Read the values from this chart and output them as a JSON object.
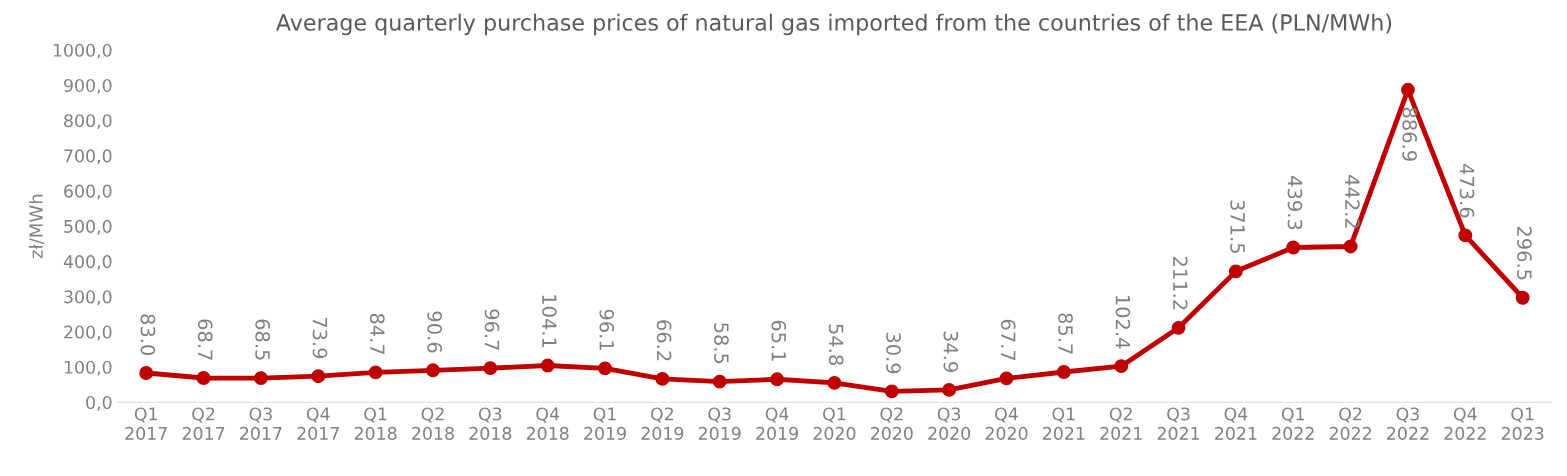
{
  "chart_data": {
    "type": "line",
    "title": "Average quarterly purchase prices of natural gas imported from the countries of the EEA (PLN/MWh)",
    "ylabel": "zł/MWh",
    "categories": [
      "Q1\n2017",
      "Q2\n2017",
      "Q3\n2017",
      "Q4\n2017",
      "Q1\n2018",
      "Q2\n2018",
      "Q3\n2018",
      "Q4\n2018",
      "Q1\n2019",
      "Q2\n2019",
      "Q3\n2019",
      "Q4\n2019",
      "Q1\n2020",
      "Q2\n2020",
      "Q3\n2020",
      "Q4\n2020",
      "Q1\n2021",
      "Q2\n2021",
      "Q3\n2021",
      "Q4\n2021",
      "Q1\n2022",
      "Q2\n2022",
      "Q3\n2022",
      "Q4\n2022",
      "Q1\n2023"
    ],
    "series": [
      {
        "color": "#c00000",
        "values": [
          83.0,
          68.7,
          68.5,
          73.9,
          84.7,
          90.6,
          96.7,
          104.1,
          96.1,
          66.2,
          58.5,
          65.1,
          54.8,
          30.9,
          34.9,
          67.7,
          85.7,
          102.4,
          211.2,
          371.5,
          439.3,
          442.2,
          886.9,
          473.6,
          296.5
        ],
        "value_labels": [
          "83.0",
          "68.7",
          "68.5",
          "73.9",
          "84.7",
          "90.6",
          "96.7",
          "104.1",
          "96.1",
          "66.2",
          "58.5",
          "65.1",
          "54.8",
          "30.9",
          "34.9",
          "67.7",
          "85.7",
          "102.4",
          "211.2",
          "371.5",
          "439.3",
          "442.2",
          "886.9",
          "473.6",
          "296.5"
        ]
      }
    ],
    "ylim": [
      0,
      1000
    ],
    "yticks": [
      {
        "value": 0,
        "label": "0,0"
      },
      {
        "value": 100,
        "label": "100,0"
      },
      {
        "value": 200,
        "label": "200,0"
      },
      {
        "value": 300,
        "label": "300,0"
      },
      {
        "value": 400,
        "label": "400,0"
      },
      {
        "value": 500,
        "label": "500,0"
      },
      {
        "value": 600,
        "label": "600,0"
      },
      {
        "value": 700,
        "label": "700,0"
      },
      {
        "value": 800,
        "label": "800,0"
      },
      {
        "value": 900,
        "label": "900,0"
      },
      {
        "value": 1000,
        "label": "1000,0"
      }
    ],
    "grid": false,
    "legend": false,
    "marker": "circle",
    "line_style": "solid"
  }
}
